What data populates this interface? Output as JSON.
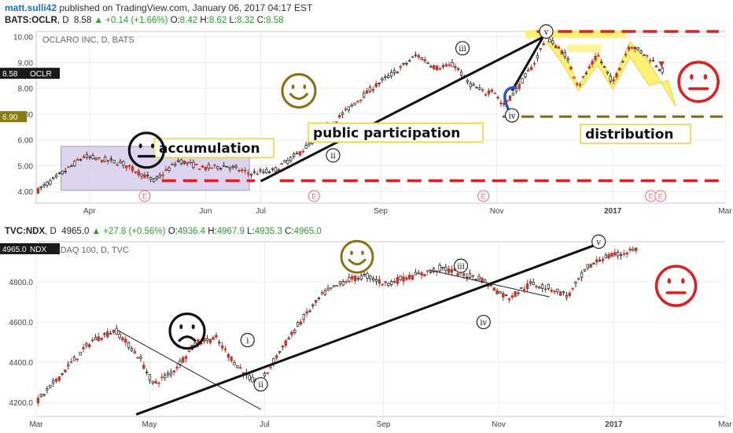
{
  "header": {
    "username": "matt.sulli42",
    "publisher_text": "published on TradingView.com, January 06, 2017 04:17 EST"
  },
  "colors": {
    "up": "#2f2f2f",
    "down": "#c0392b",
    "dashed_red": "#e02020",
    "dashed_olive": "#7a6a10",
    "purple_box": "#cdc3e6",
    "yellow": "#fff176",
    "smiley": "#8a6d0f",
    "frown_red": "#e02020"
  },
  "chart_data": [
    {
      "type": "candlestick",
      "symbol_line": {
        "symbol": "BATS:OCLR",
        "interval": "D",
        "last": "8.58",
        "change": "+0.14 (+1.66%)",
        "o_label": "O:",
        "o": "8.42",
        "h_label": "H:",
        "h": "8.62",
        "l_label": "L:",
        "l": "8.32",
        "c_label": "C:",
        "c": "8.58"
      },
      "title": "OCLARO INC, D, BATS",
      "y_ticks": [
        "10.00",
        "9.00",
        "8.00",
        "7.00",
        "6.00",
        "5.00",
        "4.00"
      ],
      "y_tick_values": [
        10,
        9,
        8,
        7,
        6,
        5,
        4
      ],
      "ylim": [
        3.55,
        10.2
      ],
      "price_tags": [
        {
          "text": "8.58",
          "sub": "OCLR",
          "value": 8.58,
          "style": "dark"
        },
        {
          "text": "6.90",
          "value": 6.9,
          "style": "olive"
        }
      ],
      "x_ticks": [
        "Apr",
        "Jun",
        "Jul",
        "Sep",
        "Nov",
        "2017",
        "Mar"
      ],
      "x_tick_days": [
        28,
        89,
        118,
        181,
        242,
        303,
        362
      ],
      "xlim": [
        0,
        362
      ],
      "earnings_marks": [
        "E",
        "E",
        "E",
        "E",
        "E"
      ],
      "earnings_days": [
        57,
        146,
        235,
        323,
        328
      ],
      "anchors": [
        [
          0,
          4.0
        ],
        [
          10,
          4.5
        ],
        [
          25,
          5.35
        ],
        [
          45,
          5.1
        ],
        [
          55,
          4.7
        ],
        [
          62,
          4.4
        ],
        [
          75,
          5.2
        ],
        [
          88,
          4.9
        ],
        [
          100,
          5.0
        ],
        [
          112,
          4.7
        ],
        [
          125,
          4.8
        ],
        [
          140,
          5.6
        ],
        [
          155,
          6.6
        ],
        [
          170,
          7.6
        ],
        [
          180,
          8.2
        ],
        [
          190,
          8.7
        ],
        [
          200,
          9.3
        ],
        [
          210,
          8.8
        ],
        [
          220,
          8.9
        ],
        [
          227,
          8.2
        ],
        [
          236,
          7.8
        ],
        [
          240,
          8.0
        ],
        [
          245,
          7.3
        ],
        [
          252,
          7.9
        ],
        [
          262,
          9.0
        ],
        [
          268,
          10.0
        ],
        [
          278,
          9.3
        ],
        [
          285,
          8.1
        ],
        [
          295,
          9.3
        ],
        [
          303,
          8.2
        ],
        [
          312,
          9.7
        ],
        [
          322,
          9.2
        ],
        [
          330,
          8.6
        ]
      ],
      "waves": [
        {
          "label": "i",
          "day": 150,
          "value": 6.35
        },
        {
          "label": "ii",
          "day": 156,
          "value": 5.4
        },
        {
          "label": "iii",
          "day": 224,
          "value": 9.55
        },
        {
          "label": "iv",
          "day": 250,
          "value": 6.95
        },
        {
          "label": "v",
          "day": 268,
          "value": 10.2
        }
      ],
      "annotations": {
        "accumulation": "accumulation",
        "public": "public participation",
        "distribution": "distribution",
        "yellow_top_1": "",
        "yellow_top_2": ""
      }
    },
    {
      "type": "candlestick",
      "symbol_line": {
        "symbol": "TVC:NDX",
        "interval": "D",
        "last": "4965.0",
        "change": "+27.8 (+0.56%)",
        "o_label": "O:",
        "o": "4936.4",
        "h_label": "H:",
        "h": "4967.9",
        "l_label": "L:",
        "l": "4935.3",
        "c_label": "C:",
        "c": "4965.0"
      },
      "title": "NASDAQ 100, D, TVC",
      "y_ticks": [
        "4800.0",
        "4600.0",
        "4400.0",
        "4200.0"
      ],
      "y_tick_values": [
        4800,
        4600,
        4400,
        4200
      ],
      "ylim": [
        4130,
        5000
      ],
      "price_tags": [
        {
          "text": "4965.0",
          "sub": "NDX",
          "value": 4965,
          "style": "dark"
        }
      ],
      "x_ticks": [
        "Mar",
        "May",
        "Jul",
        "Sep",
        "Nov",
        "2017",
        "Mar"
      ],
      "x_tick_days": [
        0,
        60,
        121,
        184,
        245,
        306,
        365
      ],
      "xlim": [
        0,
        365
      ],
      "anchors": [
        [
          0,
          4200
        ],
        [
          8,
          4280
        ],
        [
          18,
          4390
        ],
        [
          30,
          4510
        ],
        [
          42,
          4560
        ],
        [
          55,
          4420
        ],
        [
          62,
          4290
        ],
        [
          72,
          4350
        ],
        [
          85,
          4500
        ],
        [
          95,
          4520
        ],
        [
          105,
          4400
        ],
        [
          112,
          4330
        ],
        [
          118,
          4280
        ],
        [
          128,
          4440
        ],
        [
          140,
          4600
        ],
        [
          152,
          4740
        ],
        [
          165,
          4810
        ],
        [
          175,
          4830
        ],
        [
          185,
          4790
        ],
        [
          195,
          4820
        ],
        [
          205,
          4840
        ],
        [
          215,
          4870
        ],
        [
          225,
          4840
        ],
        [
          235,
          4820
        ],
        [
          242,
          4770
        ],
        [
          250,
          4720
        ],
        [
          262,
          4790
        ],
        [
          272,
          4770
        ],
        [
          282,
          4730
        ],
        [
          292,
          4870
        ],
        [
          300,
          4920
        ],
        [
          310,
          4940
        ],
        [
          318,
          4965
        ]
      ],
      "waves": [
        {
          "label": "i",
          "day": 112,
          "value": 4510
        },
        {
          "label": "ii",
          "day": 119,
          "value": 4290
        },
        {
          "label": "iii",
          "day": 225,
          "value": 4880
        },
        {
          "label": "iv",
          "day": 237,
          "value": 4600
        },
        {
          "label": "v",
          "day": 298,
          "value": 5000
        }
      ]
    }
  ]
}
